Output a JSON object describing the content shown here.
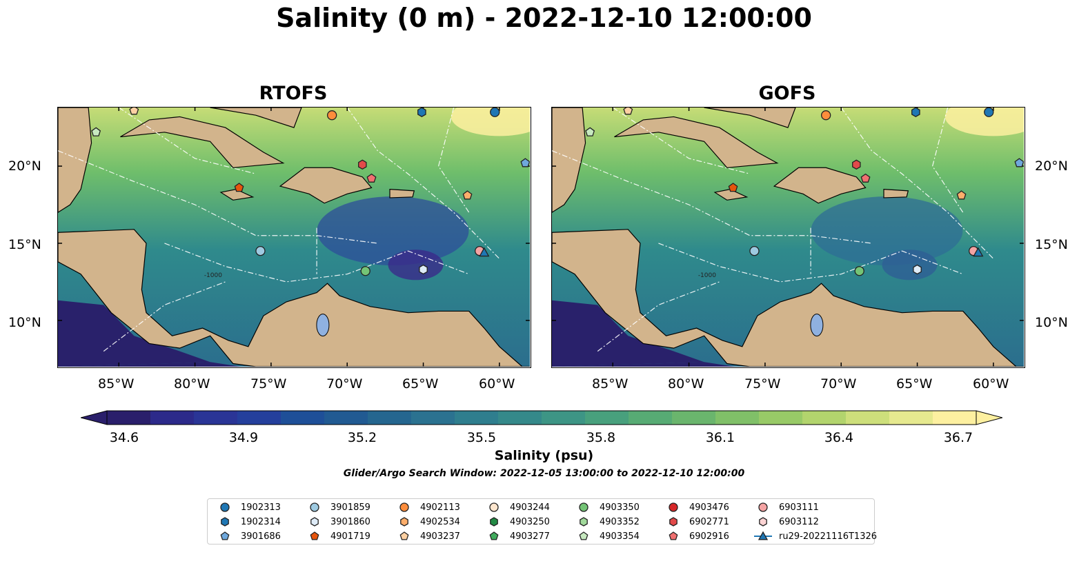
{
  "title": "Salinity (0 m) - 2022-12-10 12:00:00",
  "panels": [
    {
      "title": "RTOFS",
      "deep_hex": "#3a2a8a",
      "low_hex": "#2e4d9a"
    },
    {
      "title": "GOFS",
      "deep_hex": "#2e5f95",
      "low_hex": "#2f6e95"
    }
  ],
  "lat_ticks": [
    "20°N",
    "15°N",
    "10°N"
  ],
  "lon_ticks": [
    "85°W",
    "80°W",
    "75°W",
    "70°W",
    "65°W",
    "60°W"
  ],
  "contour_label": "-1000",
  "colorbar": {
    "ticks": [
      "34.6",
      "34.9",
      "35.2",
      "35.5",
      "35.8",
      "36.1",
      "36.4",
      "36.7"
    ],
    "colors": [
      "#2a1f6b",
      "#2c2a8a",
      "#2a3596",
      "#243f9c",
      "#1e4f98",
      "#215a92",
      "#25668f",
      "#2b7290",
      "#2f7e8e",
      "#35898a",
      "#3d9585",
      "#48a07d",
      "#57ab74",
      "#6ab56d",
      "#80c068",
      "#98ca67",
      "#b2d46d",
      "#cddf7b",
      "#e6e98f",
      "#fdf0a0"
    ],
    "label": "Salinity (psu)"
  },
  "search_window": "Glider/Argo Search Window: 2022-12-05 13:00:00 to 2022-12-10 12:00:00",
  "legend": [
    {
      "id": "1902313",
      "color": "#1f77b4",
      "shape": "circle"
    },
    {
      "id": "1902314",
      "color": "#1f77b4",
      "shape": "hexagon"
    },
    {
      "id": "3901686",
      "color": "#6fa8dc",
      "shape": "pentagon"
    },
    {
      "id": "3901859",
      "color": "#9ecae1",
      "shape": "circle"
    },
    {
      "id": "3901860",
      "color": "#deebf7",
      "shape": "hexagon"
    },
    {
      "id": "4901719",
      "color": "#e6550d",
      "shape": "pentagon"
    },
    {
      "id": "4902113",
      "color": "#fd8d3c",
      "shape": "circle"
    },
    {
      "id": "4902534",
      "color": "#fdae6b",
      "shape": "hexagon"
    },
    {
      "id": "4903237",
      "color": "#fdd0a2",
      "shape": "pentagon"
    },
    {
      "id": "4903244",
      "color": "#fee6ce",
      "shape": "circle"
    },
    {
      "id": "4903250",
      "color": "#238b45",
      "shape": "hexagon"
    },
    {
      "id": "4903277",
      "color": "#41ab5d",
      "shape": "pentagon"
    },
    {
      "id": "4903350",
      "color": "#74c476",
      "shape": "circle"
    },
    {
      "id": "4903352",
      "color": "#a1d99b",
      "shape": "hexagon"
    },
    {
      "id": "4903354",
      "color": "#c7e9c0",
      "shape": "pentagon"
    },
    {
      "id": "4903476",
      "color": "#d62728",
      "shape": "circle"
    },
    {
      "id": "6902771",
      "color": "#e34a4a",
      "shape": "hexagon"
    },
    {
      "id": "6902916",
      "color": "#f07070",
      "shape": "pentagon"
    },
    {
      "id": "6903111",
      "color": "#f4a3a3",
      "shape": "circle"
    },
    {
      "id": "6903112",
      "color": "#fbd3d3",
      "shape": "hexagon"
    },
    {
      "id": "ru29-20221116T1326",
      "color": "#1f77b4",
      "shape": "triangle-line"
    }
  ],
  "map_markers": [
    {
      "lon": -84.0,
      "lat": 23.6,
      "shape": "pentagon",
      "color": "#fdd0a2"
    },
    {
      "lon": -86.5,
      "lat": 22.2,
      "shape": "pentagon",
      "color": "#c7e9c0"
    },
    {
      "lon": -71.0,
      "lat": 23.3,
      "shape": "circle",
      "color": "#fd8d3c"
    },
    {
      "lon": -65.1,
      "lat": 23.5,
      "shape": "hexagon",
      "color": "#1f77b4"
    },
    {
      "lon": -60.3,
      "lat": 23.5,
      "shape": "circle",
      "color": "#1f77b4"
    },
    {
      "lon": -58.3,
      "lat": 20.2,
      "shape": "pentagon",
      "color": "#6fa8dc"
    },
    {
      "lon": -69.0,
      "lat": 20.1,
      "shape": "hexagon",
      "color": "#e34a4a"
    },
    {
      "lon": -68.4,
      "lat": 19.2,
      "shape": "pentagon",
      "color": "#f07070"
    },
    {
      "lon": -77.1,
      "lat": 18.6,
      "shape": "pentagon",
      "color": "#e6550d"
    },
    {
      "lon": -62.1,
      "lat": 18.1,
      "shape": "pentagon",
      "color": "#fdae6b"
    },
    {
      "lon": -75.7,
      "lat": 14.5,
      "shape": "circle",
      "color": "#9ecae1"
    },
    {
      "lon": -61.3,
      "lat": 14.5,
      "shape": "circle",
      "color": "#f4a3a3"
    },
    {
      "lon": -61.0,
      "lat": 14.4,
      "shape": "triangle",
      "color": "#1f77b4"
    },
    {
      "lon": -68.8,
      "lat": 13.2,
      "shape": "circle",
      "color": "#74c476"
    },
    {
      "lon": -65.0,
      "lat": 13.3,
      "shape": "hexagon",
      "color": "#deebf7"
    }
  ]
}
